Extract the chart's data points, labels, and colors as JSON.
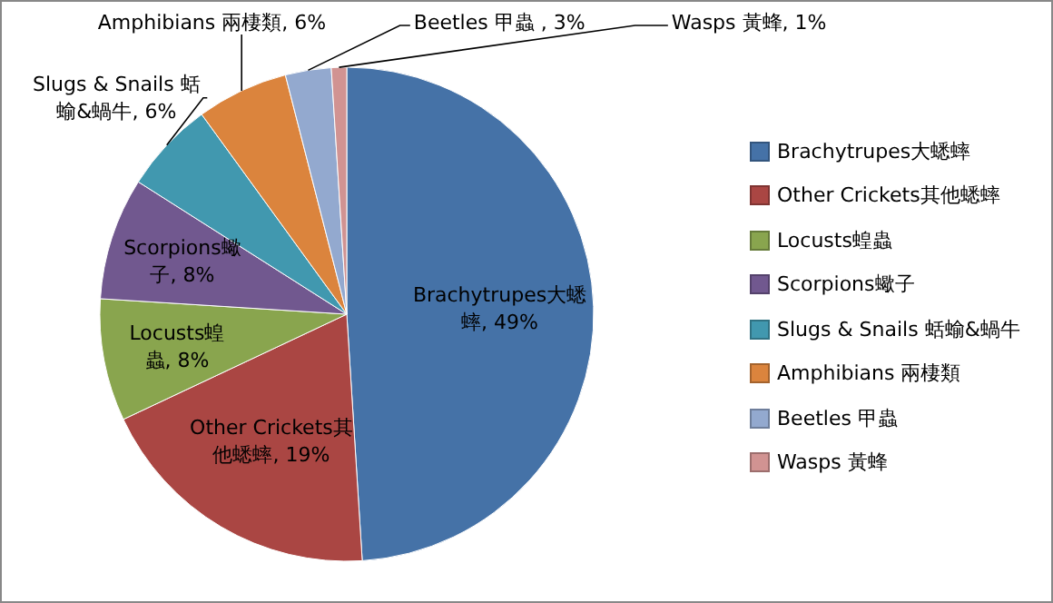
{
  "chart_data": {
    "type": "pie",
    "categories": [
      "Brachytrupes大蟋蟀",
      "Other Crickets其他蟋蟀",
      "Locusts蝗蟲",
      "Scorpions蠍子",
      "Slugs & Snails 蛞蝓&蝸牛",
      "Amphibians 兩棲類",
      "Beetles 甲蟲",
      "Wasps 黃蜂"
    ],
    "values": [
      49,
      19,
      8,
      8,
      6,
      6,
      3,
      1
    ],
    "colors": [
      "#4572a7",
      "#aa4643",
      "#89a54e",
      "#71588f",
      "#4198af",
      "#db843d",
      "#93a9cf",
      "#d19392"
    ],
    "value_labels": [
      "Brachytrupes大蟋蟀, 49%",
      "Other Crickets其他蟋蟀, 19%",
      "Locusts蝗蟲, 8%",
      "Scorpions蠍子, 8%",
      "Slugs & Snails 蛞蝓&蝸牛, 6%",
      "Amphibians 兩棲類, 6%",
      "Beetles 甲蟲 , 3%",
      "Wasps 黃蜂, 1%"
    ],
    "legend": "right"
  }
}
